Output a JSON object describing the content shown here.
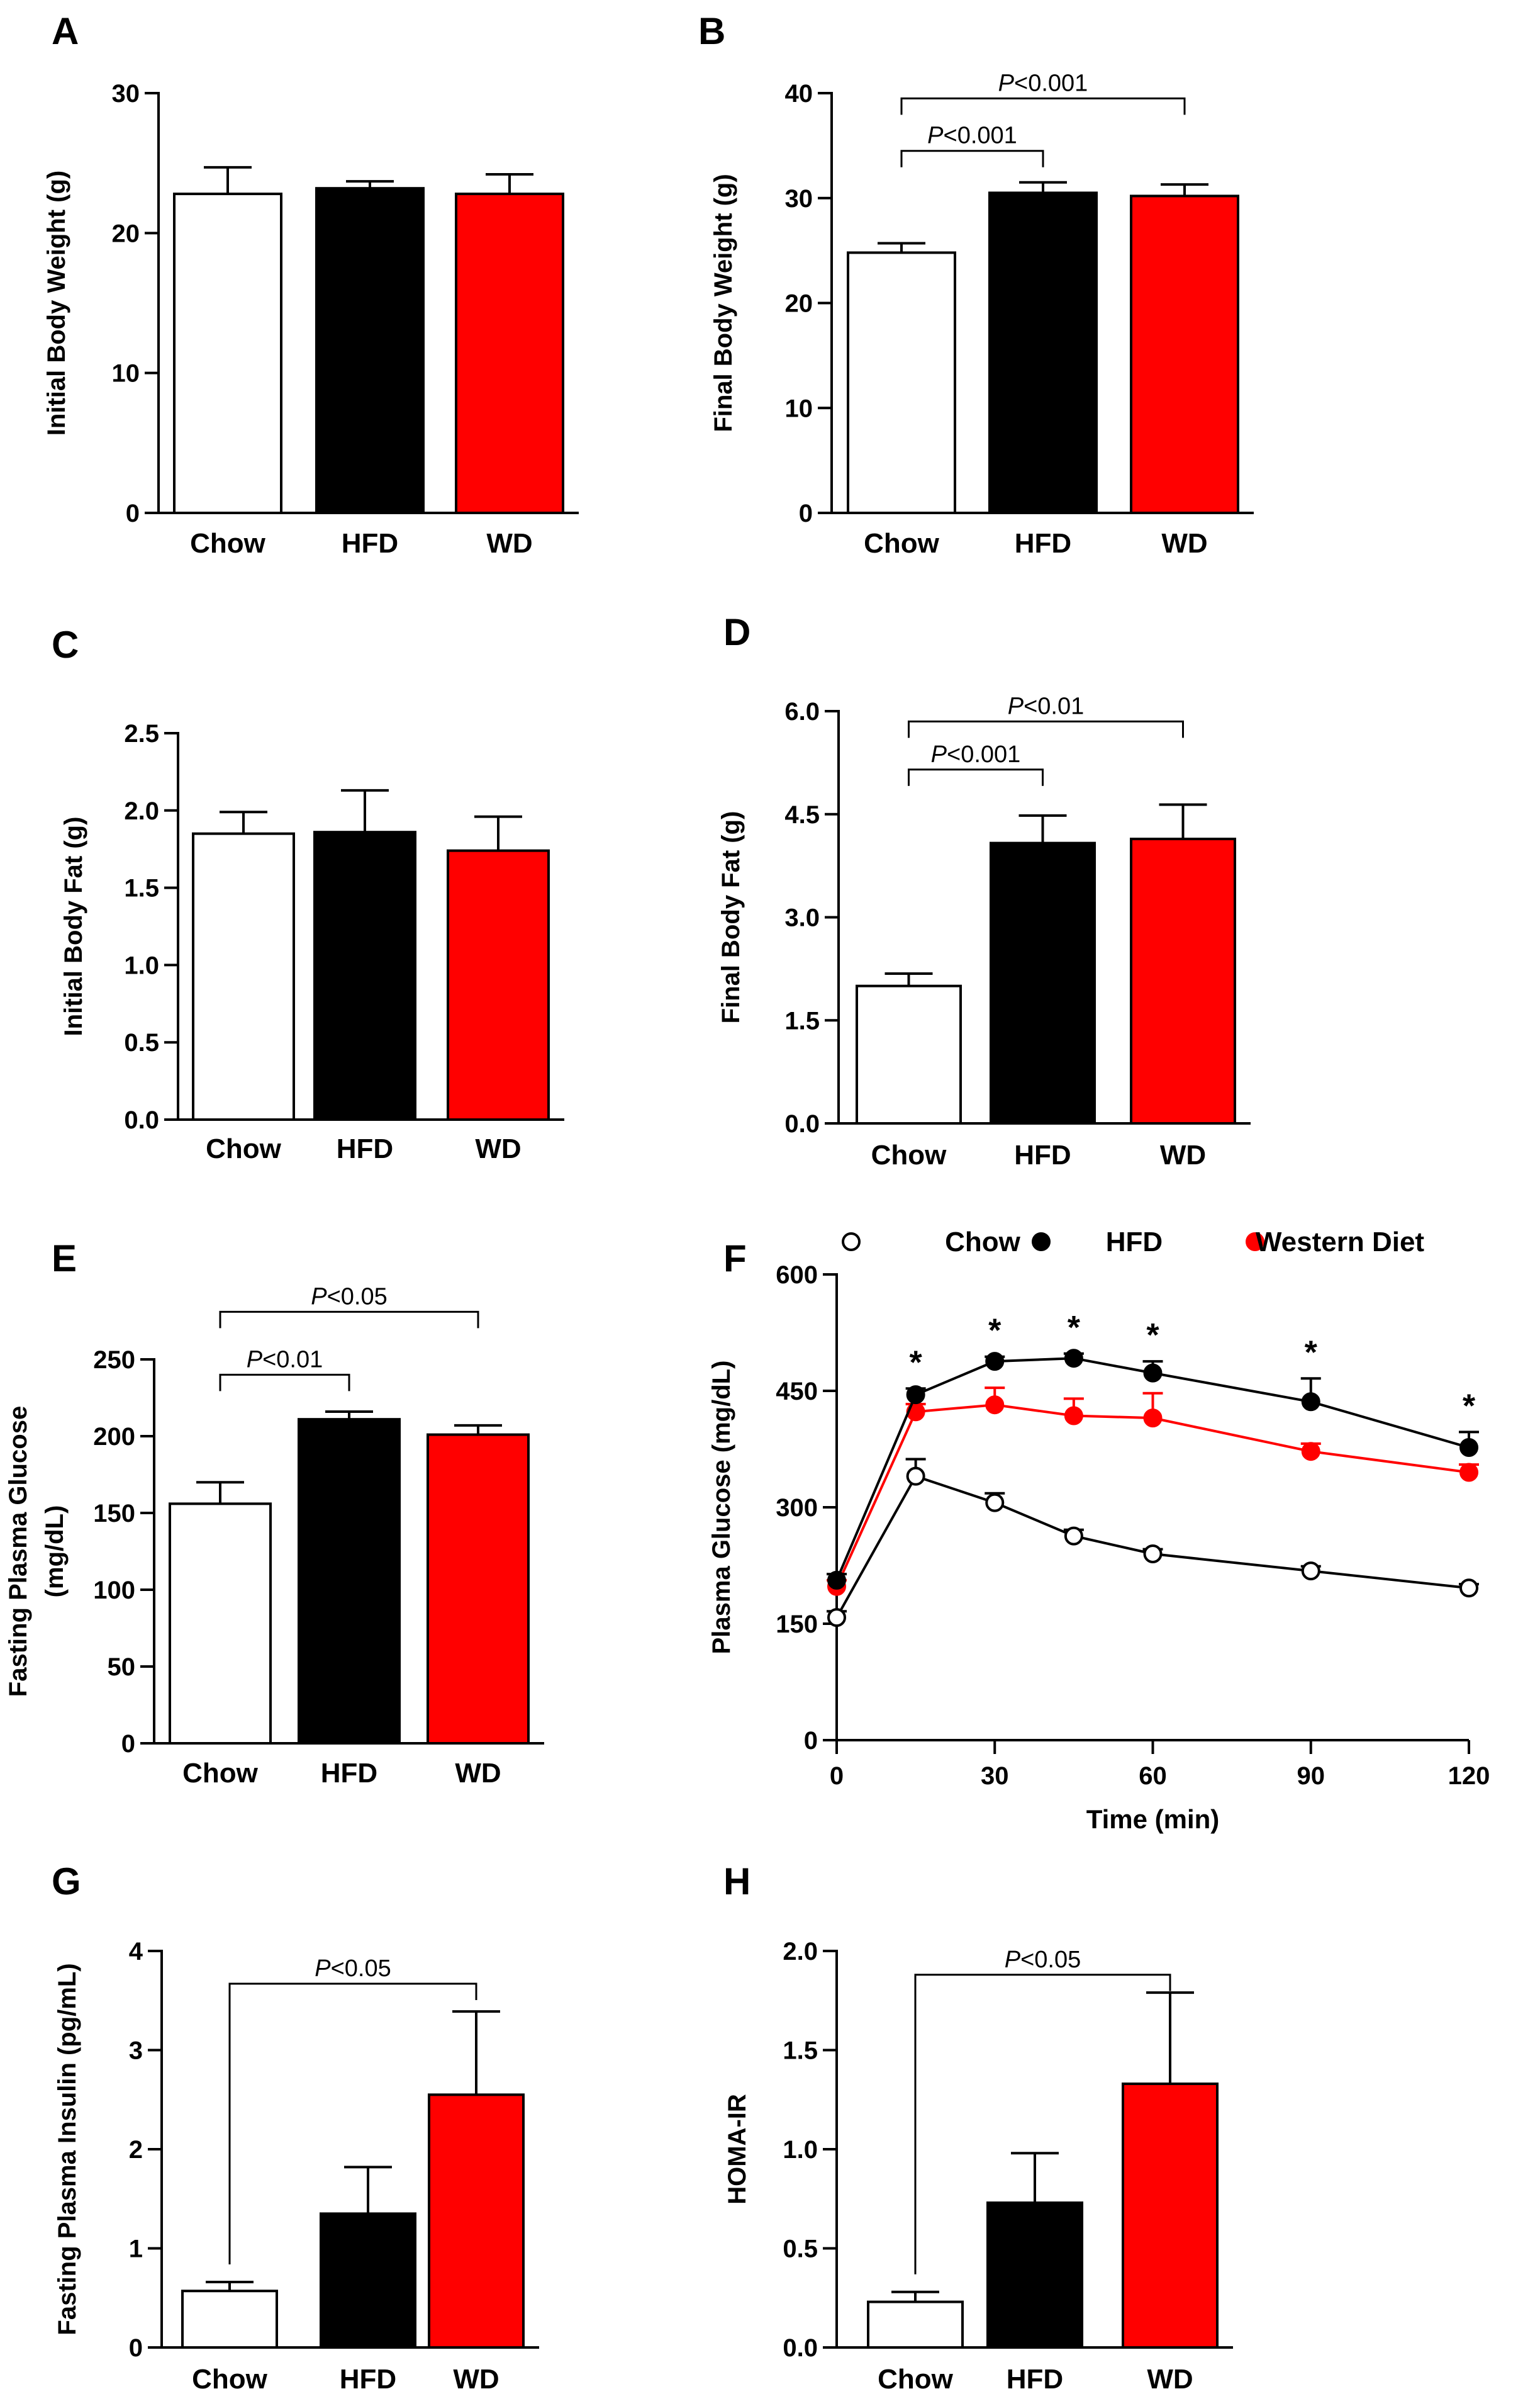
{
  "colors": {
    "chow": "#ffffff",
    "hfd": "#000000",
    "wd": "#ff0000",
    "axis": "#000000"
  },
  "chart_data": [
    {
      "panel": "A",
      "type": "bar",
      "categories": [
        "Chow",
        "HFD",
        "WD"
      ],
      "values": [
        22.8,
        23.2,
        22.8
      ],
      "errors": [
        1.9,
        0.5,
        1.4
      ],
      "ylabel": "Initial Body Weight (g)",
      "ylim": [
        0,
        30
      ],
      "yticks": [
        0,
        10,
        20,
        30
      ],
      "significance": []
    },
    {
      "panel": "B",
      "type": "bar",
      "categories": [
        "Chow",
        "HFD",
        "WD"
      ],
      "values": [
        24.8,
        30.5,
        30.2
      ],
      "errors": [
        0.9,
        1.0,
        1.1
      ],
      "ylabel": "Final Body Weight (g)",
      "ylim": [
        0,
        40
      ],
      "yticks": [
        0,
        10,
        20,
        30,
        40
      ],
      "significance": [
        {
          "from": 0,
          "to": 2,
          "level": 39.5,
          "label": "<0.001"
        },
        {
          "from": 0,
          "to": 1,
          "level": 34.5,
          "label": "<0.001"
        }
      ]
    },
    {
      "panel": "C",
      "type": "bar",
      "categories": [
        "Chow",
        "HFD",
        "WD"
      ],
      "values": [
        1.85,
        1.86,
        1.74
      ],
      "errors": [
        0.14,
        0.27,
        0.22
      ],
      "ylabel": "Initial Body Fat (g)",
      "ylim": [
        0,
        2.5
      ],
      "yticks": [
        "0.0",
        "0.5",
        "1.0",
        "1.5",
        "2.0",
        "2.5"
      ],
      "significance": []
    },
    {
      "panel": "D",
      "type": "bar",
      "categories": [
        "Chow",
        "HFD",
        "WD"
      ],
      "values": [
        2.0,
        4.08,
        4.14
      ],
      "errors": [
        0.18,
        0.4,
        0.5
      ],
      "ylabel": "Final Body Fat (g)",
      "ylim": [
        0,
        6
      ],
      "yticks": [
        "0.0",
        "1.5",
        "3.0",
        "4.5",
        "6.0"
      ],
      "significance": [
        {
          "from": 0,
          "to": 2,
          "level": 5.85,
          "label": "<0.01"
        },
        {
          "from": 0,
          "to": 1,
          "level": 5.15,
          "label": "<0.001"
        }
      ]
    },
    {
      "panel": "E",
      "type": "bar",
      "categories": [
        "Chow",
        "HFD",
        "WD"
      ],
      "values": [
        156,
        211,
        201
      ],
      "errors": [
        14,
        5,
        6
      ],
      "ylabel": "Fasting Plasma Glucose",
      "ylabel2": "(mg/dL)",
      "ylim": [
        0,
        250
      ],
      "yticks": [
        0,
        50,
        100,
        150,
        200,
        250
      ],
      "significance": [
        {
          "from": 0,
          "to": 2,
          "level": 281,
          "label": "<0.05"
        },
        {
          "from": 0,
          "to": 1,
          "level": 240,
          "label": "<0.01"
        }
      ]
    },
    {
      "panel": "F",
      "type": "line",
      "x": [
        0,
        15,
        30,
        45,
        60,
        90,
        120
      ],
      "series": [
        {
          "name": "Chow",
          "values": [
            158,
            340,
            306,
            263,
            240,
            218,
            196
          ],
          "errors": [
            8,
            22,
            12,
            8,
            6,
            6,
            5
          ]
        },
        {
          "name": "HFD",
          "values": [
            206,
            445,
            488,
            492,
            473,
            436,
            377
          ],
          "errors": [
            8,
            8,
            6,
            6,
            15,
            30,
            20
          ]
        },
        {
          "name": "Western Diet",
          "values": [
            198,
            423,
            432,
            418,
            415,
            372,
            345
          ],
          "errors": [
            8,
            10,
            22,
            22,
            32,
            10,
            10
          ]
        }
      ],
      "stars": [
        "*",
        "*",
        "*",
        "*",
        "*",
        "*"
      ],
      "star_x": [
        15,
        30,
        45,
        60,
        90,
        120
      ],
      "xlabel": "Time (min)",
      "ylabel": "Plasma Glucose (mg/dL)",
      "xlim": [
        0,
        120
      ],
      "xticks": [
        0,
        30,
        60,
        90,
        120
      ],
      "ylim": [
        0,
        600
      ],
      "yticks": [
        0,
        150,
        300,
        450,
        600
      ],
      "legend": [
        "Chow",
        "HFD",
        "Western Diet"
      ]
    },
    {
      "panel": "G",
      "type": "bar",
      "categories": [
        "Chow",
        "HFD",
        "WD"
      ],
      "values": [
        0.57,
        1.35,
        2.55
      ],
      "errors": [
        0.09,
        0.47,
        0.84
      ],
      "ylabel": "Fasting Plasma Insulin (pg/mL)",
      "ylim": [
        0,
        4
      ],
      "yticks": [
        0,
        1,
        2,
        3,
        4
      ],
      "significance": [
        {
          "from": 0,
          "to": 2,
          "level": 3.67,
          "label": "<0.05",
          "start_at_bar": true
        }
      ]
    },
    {
      "panel": "H",
      "type": "bar",
      "categories": [
        "Chow",
        "HFD",
        "WD"
      ],
      "values": [
        0.23,
        0.73,
        1.33
      ],
      "errors": [
        0.05,
        0.25,
        0.46
      ],
      "ylabel": "HOMA-IR",
      "ylim": [
        0,
        2
      ],
      "yticks": [
        "0.0",
        "0.5",
        "1.0",
        "1.5",
        "2.0"
      ],
      "significance": [
        {
          "from": 0,
          "to": 2,
          "level": 1.88,
          "label": "<0.05",
          "start_at_bar": true
        }
      ]
    }
  ]
}
